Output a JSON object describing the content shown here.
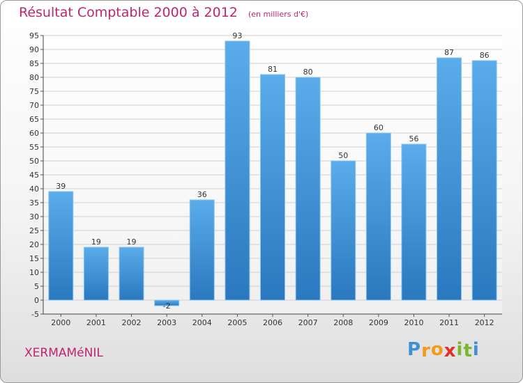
{
  "header": {
    "title": "Résultat Comptable 2000 à 2012",
    "unit": "(en milliers d'€)"
  },
  "footer": {
    "commune": "XERMAMéNIL",
    "logo_letters": [
      "P",
      "r",
      "o",
      "x",
      "i",
      "t",
      "i"
    ]
  },
  "colors": {
    "title": "#c0266d",
    "bar_top": "#5aacea",
    "bar_bottom": "#2a78bf",
    "grid": "#cfcfcf",
    "logo": [
      "#3f8fd2",
      "#f39a1a",
      "#f39a1a",
      "#e0302a",
      "#79b72b",
      "#79b72b",
      "#3f8fd2"
    ]
  },
  "chart_data": {
    "type": "bar",
    "categories": [
      "2000",
      "2001",
      "2002",
      "2003",
      "2004",
      "2005",
      "2006",
      "2007",
      "2008",
      "2009",
      "2010",
      "2011",
      "2012"
    ],
    "values": [
      39,
      19,
      19,
      -2,
      36,
      93,
      81,
      80,
      50,
      60,
      56,
      87,
      86
    ],
    "title": "Résultat Comptable 2000 à 2012",
    "ylim": [
      -5,
      95
    ],
    "yticks": [
      -5,
      0,
      5,
      10,
      15,
      20,
      25,
      30,
      35,
      40,
      45,
      50,
      55,
      60,
      65,
      70,
      75,
      80,
      85,
      90,
      95
    ],
    "grid": true
  }
}
